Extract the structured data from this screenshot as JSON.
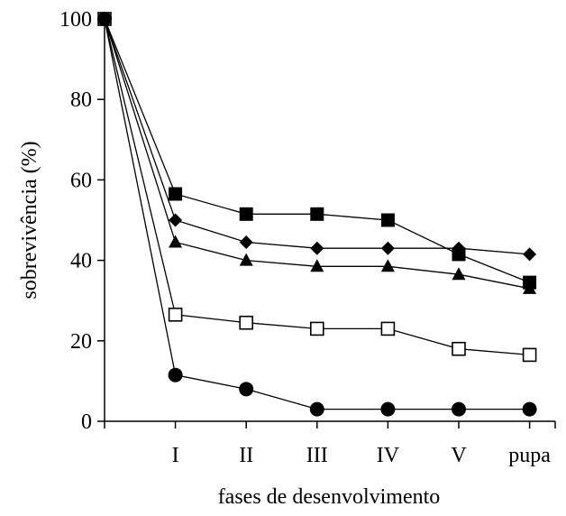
{
  "chart_data": {
    "type": "line",
    "title": "",
    "xlabel": "fases de desenvolvimento",
    "ylabel": "sobrevivência (%)",
    "categories": [
      "",
      "I",
      "II",
      "III",
      "IV",
      "V",
      "pupa"
    ],
    "ylim": [
      0,
      100
    ],
    "yticks": [
      0,
      20,
      40,
      60,
      80,
      100
    ],
    "grid": false,
    "legend": "none",
    "series": [
      {
        "marker": "filled-square",
        "values": [
          100,
          56.5,
          51.5,
          51.5,
          50,
          41.5,
          34.5
        ]
      },
      {
        "marker": "filled-diamond",
        "values": [
          100,
          50,
          44.5,
          43,
          43,
          43,
          41.5
        ]
      },
      {
        "marker": "filled-triangle",
        "values": [
          100,
          44.5,
          40,
          38.5,
          38.5,
          36.5,
          33
        ]
      },
      {
        "marker": "open-square",
        "values": [
          100,
          26.5,
          24.5,
          23,
          23,
          18,
          16.5
        ]
      },
      {
        "marker": "filled-circle",
        "values": [
          100,
          11.5,
          8,
          3,
          3,
          3,
          3
        ]
      }
    ],
    "colors": {
      "line": "#000000",
      "marker": "#000000",
      "open_fill": "#ffffff"
    }
  }
}
